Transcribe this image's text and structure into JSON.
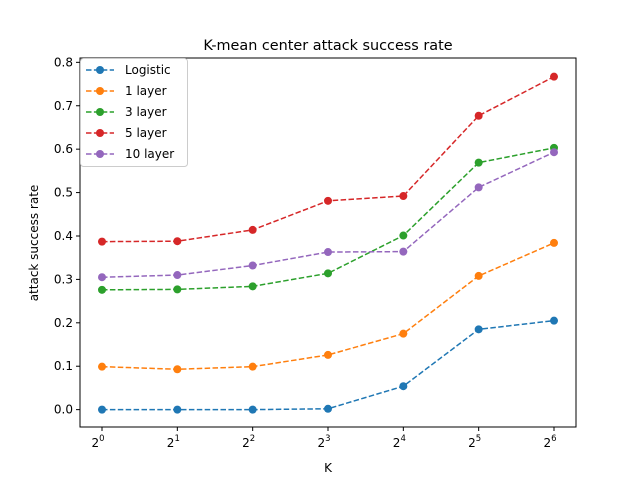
{
  "chart_data": {
    "type": "line",
    "title": "K-mean center attack success rate",
    "xlabel": "K",
    "ylabel": "attack success rate",
    "x_scale": "log2",
    "x": [
      1,
      2,
      4,
      8,
      16,
      32,
      64
    ],
    "x_tick_labels": [
      {
        "base": "2",
        "exp": "0"
      },
      {
        "base": "2",
        "exp": "1"
      },
      {
        "base": "2",
        "exp": "2"
      },
      {
        "base": "2",
        "exp": "3"
      },
      {
        "base": "2",
        "exp": "4"
      },
      {
        "base": "2",
        "exp": "5"
      },
      {
        "base": "2",
        "exp": "6"
      }
    ],
    "y_ticks": [
      "0.0",
      "0.1",
      "0.2",
      "0.3",
      "0.4",
      "0.5",
      "0.6",
      "0.7",
      "0.8"
    ],
    "ylim": [
      -0.04,
      0.81
    ],
    "grid": false,
    "legend_position": "top-left",
    "series": [
      {
        "name": "Logistic",
        "color": "#1f77b4",
        "values": [
          0.0,
          0.0,
          0.0,
          0.002,
          0.054,
          0.185,
          0.205
        ]
      },
      {
        "name": "1 layer",
        "color": "#ff7f0e",
        "values": [
          0.099,
          0.093,
          0.099,
          0.126,
          0.175,
          0.308,
          0.384
        ]
      },
      {
        "name": "3 layer",
        "color": "#2ca02c",
        "values": [
          0.276,
          0.277,
          0.284,
          0.314,
          0.401,
          0.569,
          0.603
        ]
      },
      {
        "name": "5 layer",
        "color": "#d62728",
        "values": [
          0.387,
          0.388,
          0.414,
          0.481,
          0.492,
          0.677,
          0.767
        ]
      },
      {
        "name": "10 layer",
        "color": "#9467bd",
        "values": [
          0.305,
          0.31,
          0.332,
          0.363,
          0.364,
          0.512,
          0.593
        ]
      }
    ]
  }
}
